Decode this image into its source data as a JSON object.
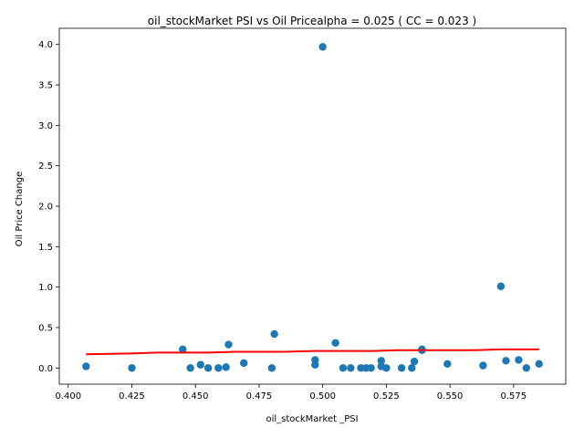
{
  "chart_data": {
    "type": "scatter",
    "title": "oil_stockMarket  PSI vs Oil Pricealpha = 0.025 ( CC = 0.023 )",
    "xlabel": "oil_stockMarket _PSI",
    "ylabel": "Oil Price Change",
    "xlim": [
      0.3965,
      0.5955
    ],
    "ylim": [
      -0.2,
      4.2
    ],
    "xticks": [
      0.4,
      0.425,
      0.45,
      0.475,
      0.5,
      0.525,
      0.55,
      0.575
    ],
    "xtick_labels": [
      "0.400",
      "0.425",
      "0.450",
      "0.475",
      "0.500",
      "0.525",
      "0.550",
      "0.575"
    ],
    "yticks": [
      0.0,
      0.5,
      1.0,
      1.5,
      2.0,
      2.5,
      3.0,
      3.5,
      4.0
    ],
    "ytick_labels": [
      "0.0",
      "0.5",
      "1.0",
      "1.5",
      "2.0",
      "2.5",
      "3.0",
      "3.5",
      "4.0"
    ],
    "grid": false,
    "colors": {
      "points": "#1f77b4",
      "fit_line": "#ff0000"
    },
    "series": [
      {
        "type": "scatter",
        "x": [
          0.407,
          0.425,
          0.445,
          0.448,
          0.452,
          0.455,
          0.459,
          0.462,
          0.463,
          0.469,
          0.48,
          0.481,
          0.497,
          0.497,
          0.5,
          0.505,
          0.508,
          0.511,
          0.515,
          0.517,
          0.519,
          0.523,
          0.523,
          0.525,
          0.531,
          0.535,
          0.536,
          0.539,
          0.539,
          0.549,
          0.563,
          0.57,
          0.572,
          0.577,
          0.58,
          0.585
        ],
        "y": [
          0.02,
          0.0,
          0.23,
          0.0,
          0.04,
          0.0,
          0.0,
          0.01,
          0.29,
          0.06,
          0.0,
          0.42,
          0.1,
          0.04,
          3.97,
          0.31,
          0.0,
          0.0,
          0.0,
          0.0,
          0.0,
          0.02,
          0.09,
          0.0,
          0.0,
          0.0,
          0.08,
          0.22,
          0.23,
          0.05,
          0.03,
          1.01,
          0.09,
          0.1,
          0.0,
          0.05
        ]
      },
      {
        "type": "line",
        "x": [
          0.407,
          0.425,
          0.435,
          0.445,
          0.455,
          0.465,
          0.475,
          0.485,
          0.497,
          0.51,
          0.52,
          0.53,
          0.545,
          0.56,
          0.57,
          0.585
        ],
        "y": [
          0.17,
          0.18,
          0.19,
          0.19,
          0.19,
          0.2,
          0.2,
          0.2,
          0.21,
          0.21,
          0.21,
          0.22,
          0.22,
          0.22,
          0.23,
          0.23
        ]
      }
    ]
  }
}
